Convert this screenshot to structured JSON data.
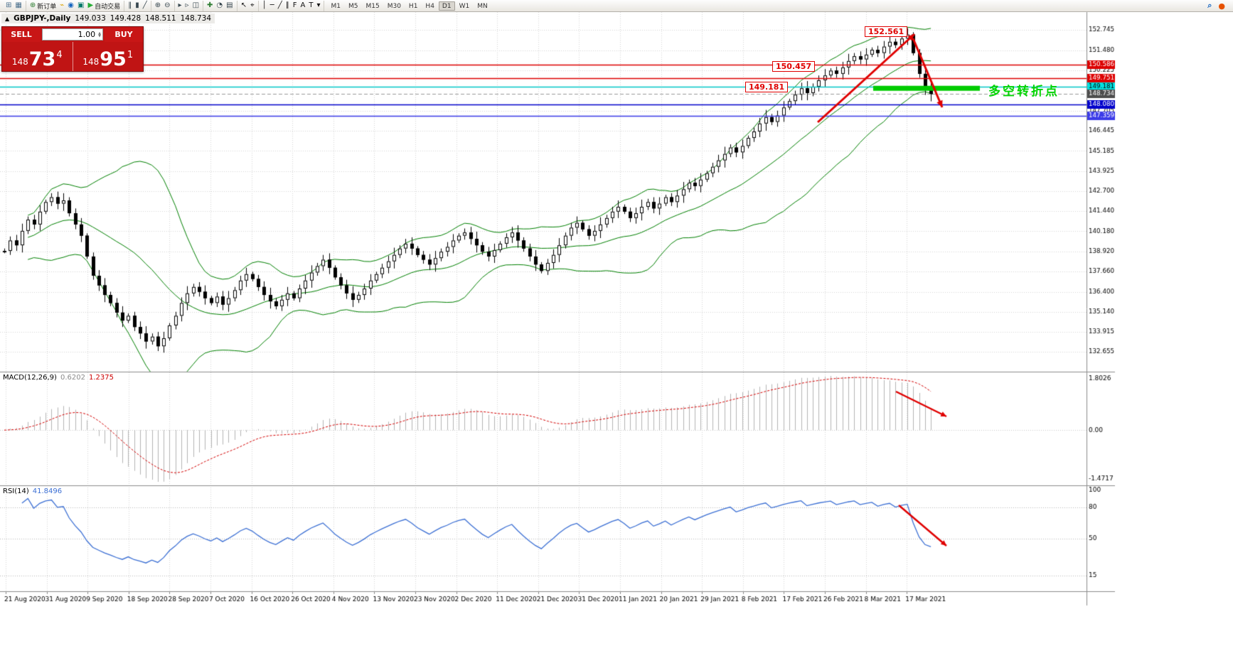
{
  "toolbar": {
    "groups": [
      {
        "name": "windows",
        "items": [
          {
            "name": "new-chart-icon",
            "glyph": "⊞",
            "color": "#4a6f8c"
          },
          {
            "name": "chart-profiles-icon",
            "glyph": "▦",
            "color": "#4a6f8c"
          }
        ]
      },
      {
        "name": "trading",
        "items": [
          {
            "name": "new-order-button",
            "glyph": "⊕",
            "color": "#2e7d32",
            "label": "新订单"
          },
          {
            "name": "expert-advisor-icon",
            "glyph": "⌁",
            "color": "#dba400"
          },
          {
            "name": "market-depth-icon",
            "glyph": "◉",
            "color": "#1565c0"
          },
          {
            "name": "history-center-icon",
            "glyph": "▣",
            "color": "#00796b"
          },
          {
            "name": "auto-trading-button",
            "glyph": "▶",
            "color": "#27ae36",
            "label": "自动交易"
          }
        ]
      },
      {
        "name": "chart-type",
        "items": [
          {
            "name": "bar-chart-icon",
            "glyph": "‖",
            "color": "#37474f"
          },
          {
            "name": "candlestick-chart-icon",
            "glyph": "▮",
            "color": "#37474f"
          },
          {
            "name": "line-chart-icon",
            "glyph": "╱",
            "color": "#37474f"
          }
        ]
      },
      {
        "name": "zoom",
        "items": [
          {
            "name": "zoom-in-icon",
            "glyph": "⊕",
            "color": "#37474f"
          },
          {
            "name": "zoom-out-icon",
            "glyph": "⊖",
            "color": "#37474f"
          }
        ]
      },
      {
        "name": "layout",
        "items": [
          {
            "name": "auto-scroll-icon",
            "glyph": "▸",
            "color": "#37474f"
          },
          {
            "name": "chart-shift-icon",
            "glyph": "▹",
            "color": "#37474f"
          },
          {
            "name": "tile-windows-icon",
            "glyph": "◫",
            "color": "#37474f"
          }
        ]
      },
      {
        "name": "objects",
        "items": [
          {
            "name": "indicators-icon",
            "glyph": "✚",
            "color": "#2e7d32"
          },
          {
            "name": "periods-icon",
            "glyph": "◔",
            "color": "#37474f"
          },
          {
            "name": "templates-icon",
            "glyph": "▤",
            "color": "#37474f"
          }
        ]
      },
      {
        "name": "cursor",
        "items": [
          {
            "name": "cursor-icon",
            "glyph": "↖",
            "color": "#111"
          },
          {
            "name": "crosshair-icon",
            "glyph": "⌖",
            "color": "#111"
          }
        ]
      },
      {
        "name": "lines",
        "items": [
          {
            "name": "vertical-line-icon",
            "glyph": "│",
            "color": "#111"
          },
          {
            "name": "horizontal-line-icon",
            "glyph": "─",
            "color": "#111"
          },
          {
            "name": "trendline-icon",
            "glyph": "╱",
            "color": "#111"
          },
          {
            "name": "channel-icon",
            "glyph": "∥",
            "color": "#111"
          },
          {
            "name": "fibonacci-icon",
            "glyph": "F",
            "color": "#111"
          },
          {
            "name": "text-icon",
            "glyph": "A",
            "color": "#111"
          },
          {
            "name": "label-icon",
            "glyph": "T",
            "color": "#111"
          },
          {
            "name": "shapes-icon",
            "glyph": "▾",
            "color": "#111"
          }
        ]
      }
    ],
    "timeframes": {
      "items": [
        "M1",
        "M5",
        "M15",
        "M30",
        "H1",
        "H4",
        "D1",
        "W1",
        "MN"
      ],
      "active": "D1"
    },
    "right_icons": [
      {
        "name": "search-icon",
        "glyph": "⌕",
        "color": "#1565c0"
      },
      {
        "name": "help-icon",
        "glyph": "●",
        "color": "#e65100"
      }
    ]
  },
  "chart_header": {
    "marker": "▲",
    "symbol_period": "GBPJPY-,Daily",
    "open": "149.033",
    "high": "149.428",
    "low": "148.511",
    "close": "148.734"
  },
  "trade_panel": {
    "sell_label": "SELL",
    "buy_label": "BUY",
    "volume": "1.00",
    "sell_price": {
      "prefix": "148",
      "big": "73",
      "sup": "4"
    },
    "buy_price": {
      "prefix": "148",
      "big": "95",
      "sup": "1"
    }
  },
  "chart_data": {
    "type": "candlestick",
    "symbol": "GBPJPY-",
    "period": "Daily",
    "ohlc_header": {
      "open": 149.033,
      "high": 149.428,
      "low": 148.511,
      "close": 148.734
    },
    "current_price": 148.734,
    "price_series": {
      "note": "estimated daily closes, 21 Aug 2020 - 24 Mar 2021, read from chart",
      "closes": [
        138.95,
        139.6,
        139.3,
        140.2,
        140.9,
        140.6,
        141.4,
        142.0,
        142.3,
        141.9,
        142.1,
        141.3,
        140.6,
        139.9,
        138.6,
        137.4,
        136.8,
        136.2,
        135.7,
        135.1,
        134.6,
        134.9,
        134.2,
        133.8,
        133.3,
        133.6,
        133.0,
        133.5,
        134.3,
        134.9,
        135.7,
        136.3,
        136.7,
        136.4,
        136.0,
        135.7,
        136.1,
        135.6,
        136.0,
        136.5,
        137.1,
        137.5,
        137.2,
        136.7,
        136.2,
        135.8,
        135.5,
        135.9,
        136.3,
        136.0,
        136.6,
        137.1,
        137.6,
        138.0,
        138.4,
        137.9,
        137.3,
        136.8,
        136.3,
        135.9,
        136.2,
        136.6,
        137.1,
        137.5,
        137.9,
        138.3,
        138.7,
        139.1,
        139.4,
        139.1,
        138.7,
        138.4,
        138.1,
        138.5,
        138.9,
        139.2,
        139.6,
        139.9,
        140.1,
        139.7,
        139.3,
        138.9,
        138.6,
        139.0,
        139.4,
        139.8,
        140.1,
        139.6,
        139.1,
        138.6,
        138.1,
        137.7,
        138.2,
        138.7,
        139.3,
        139.9,
        140.4,
        140.7,
        140.3,
        139.9,
        140.2,
        140.6,
        141.0,
        141.4,
        141.7,
        141.4,
        141.0,
        141.3,
        141.7,
        142.0,
        141.6,
        141.9,
        142.3,
        142.0,
        142.4,
        142.8,
        143.2,
        143.0,
        143.4,
        143.8,
        144.2,
        144.6,
        145.0,
        145.4,
        145.1,
        145.5,
        146.0,
        146.4,
        146.9,
        147.3,
        147.0,
        147.4,
        147.9,
        148.3,
        148.7,
        149.1,
        148.8,
        149.2,
        149.6,
        149.9,
        150.2,
        150.0,
        150.4,
        150.8,
        151.1,
        150.9,
        151.2,
        151.5,
        151.3,
        151.7,
        152.0,
        151.8,
        152.2,
        152.45,
        151.3,
        150.0,
        149.033,
        148.734
      ]
    },
    "overlays": {
      "bollinger": {
        "period": 20,
        "deviation": 2,
        "color": "#008000"
      }
    },
    "price_scale": {
      "ticks": [
        "152.745",
        "151.480",
        "150.225",
        "147.705",
        "146.445",
        "145.185",
        "143.925",
        "142.700",
        "141.440",
        "140.180",
        "138.920",
        "137.660",
        "136.400",
        "135.140",
        "133.915",
        "132.655"
      ],
      "highlights": [
        {
          "value": "150.586",
          "bg": "#dd0000",
          "fg": "#ffffff"
        },
        {
          "value": "149.751",
          "bg": "#dd0000",
          "fg": "#ffffff"
        },
        {
          "value": "149.181",
          "bg": "#00e0e0",
          "fg": "#000000"
        },
        {
          "value": "148.734",
          "bg": "#4d4d4d",
          "fg": "#ffffff"
        },
        {
          "value": "148.080",
          "bg": "#0000cc",
          "fg": "#ffffff"
        },
        {
          "value": "147.359",
          "bg": "#3b3be8",
          "fg": "#ffffff"
        }
      ]
    },
    "hlines": [
      {
        "value": 150.586,
        "color": "#dd0000"
      },
      {
        "value": 149.751,
        "color": "#dd0000"
      },
      {
        "value": 149.181,
        "color": "#00c8c8"
      },
      {
        "value": 148.08,
        "color": "#0000cc"
      },
      {
        "value": 147.359,
        "color": "#3b3be8"
      }
    ],
    "annotations": {
      "price_flags": [
        {
          "text": "152.561"
        },
        {
          "text": "150.457"
        },
        {
          "text": "149.181"
        }
      ],
      "turning_point_label": {
        "text": "多空转折点",
        "color": "#00d400"
      },
      "green_zone_color": "#00cc00",
      "arrow_color": "#e00000"
    },
    "macd": {
      "label": "MACD(12,26,9)",
      "main_value": "0.6202",
      "signal_value": "1.2375",
      "scale_labels": [
        "1.8026",
        "0.00",
        "-1.4717"
      ],
      "params": [
        12,
        26,
        9
      ]
    },
    "rsi": {
      "label": "RSI(14)",
      "value": "41.8496",
      "levels": [
        "100",
        "80",
        "50",
        "15"
      ]
    },
    "time_axis": {
      "labels": [
        "21 Aug 2020",
        "31 Aug 2020",
        "9 Sep 2020",
        "18 Sep 2020",
        "28 Sep 2020",
        "7 Oct 2020",
        "16 Oct 2020",
        "26 Oct 2020",
        "4 Nov 2020",
        "13 Nov 2020",
        "23 Nov 2020",
        "2 Dec 2020",
        "11 Dec 2020",
        "21 Dec 2020",
        "31 Dec 2020",
        "11 Jan 2021",
        "20 Jan 2021",
        "29 Jan 2021",
        "8 Feb 2021",
        "17 Feb 2021",
        "26 Feb 2021",
        "8 Mar 2021",
        "17 Mar 2021"
      ]
    }
  }
}
